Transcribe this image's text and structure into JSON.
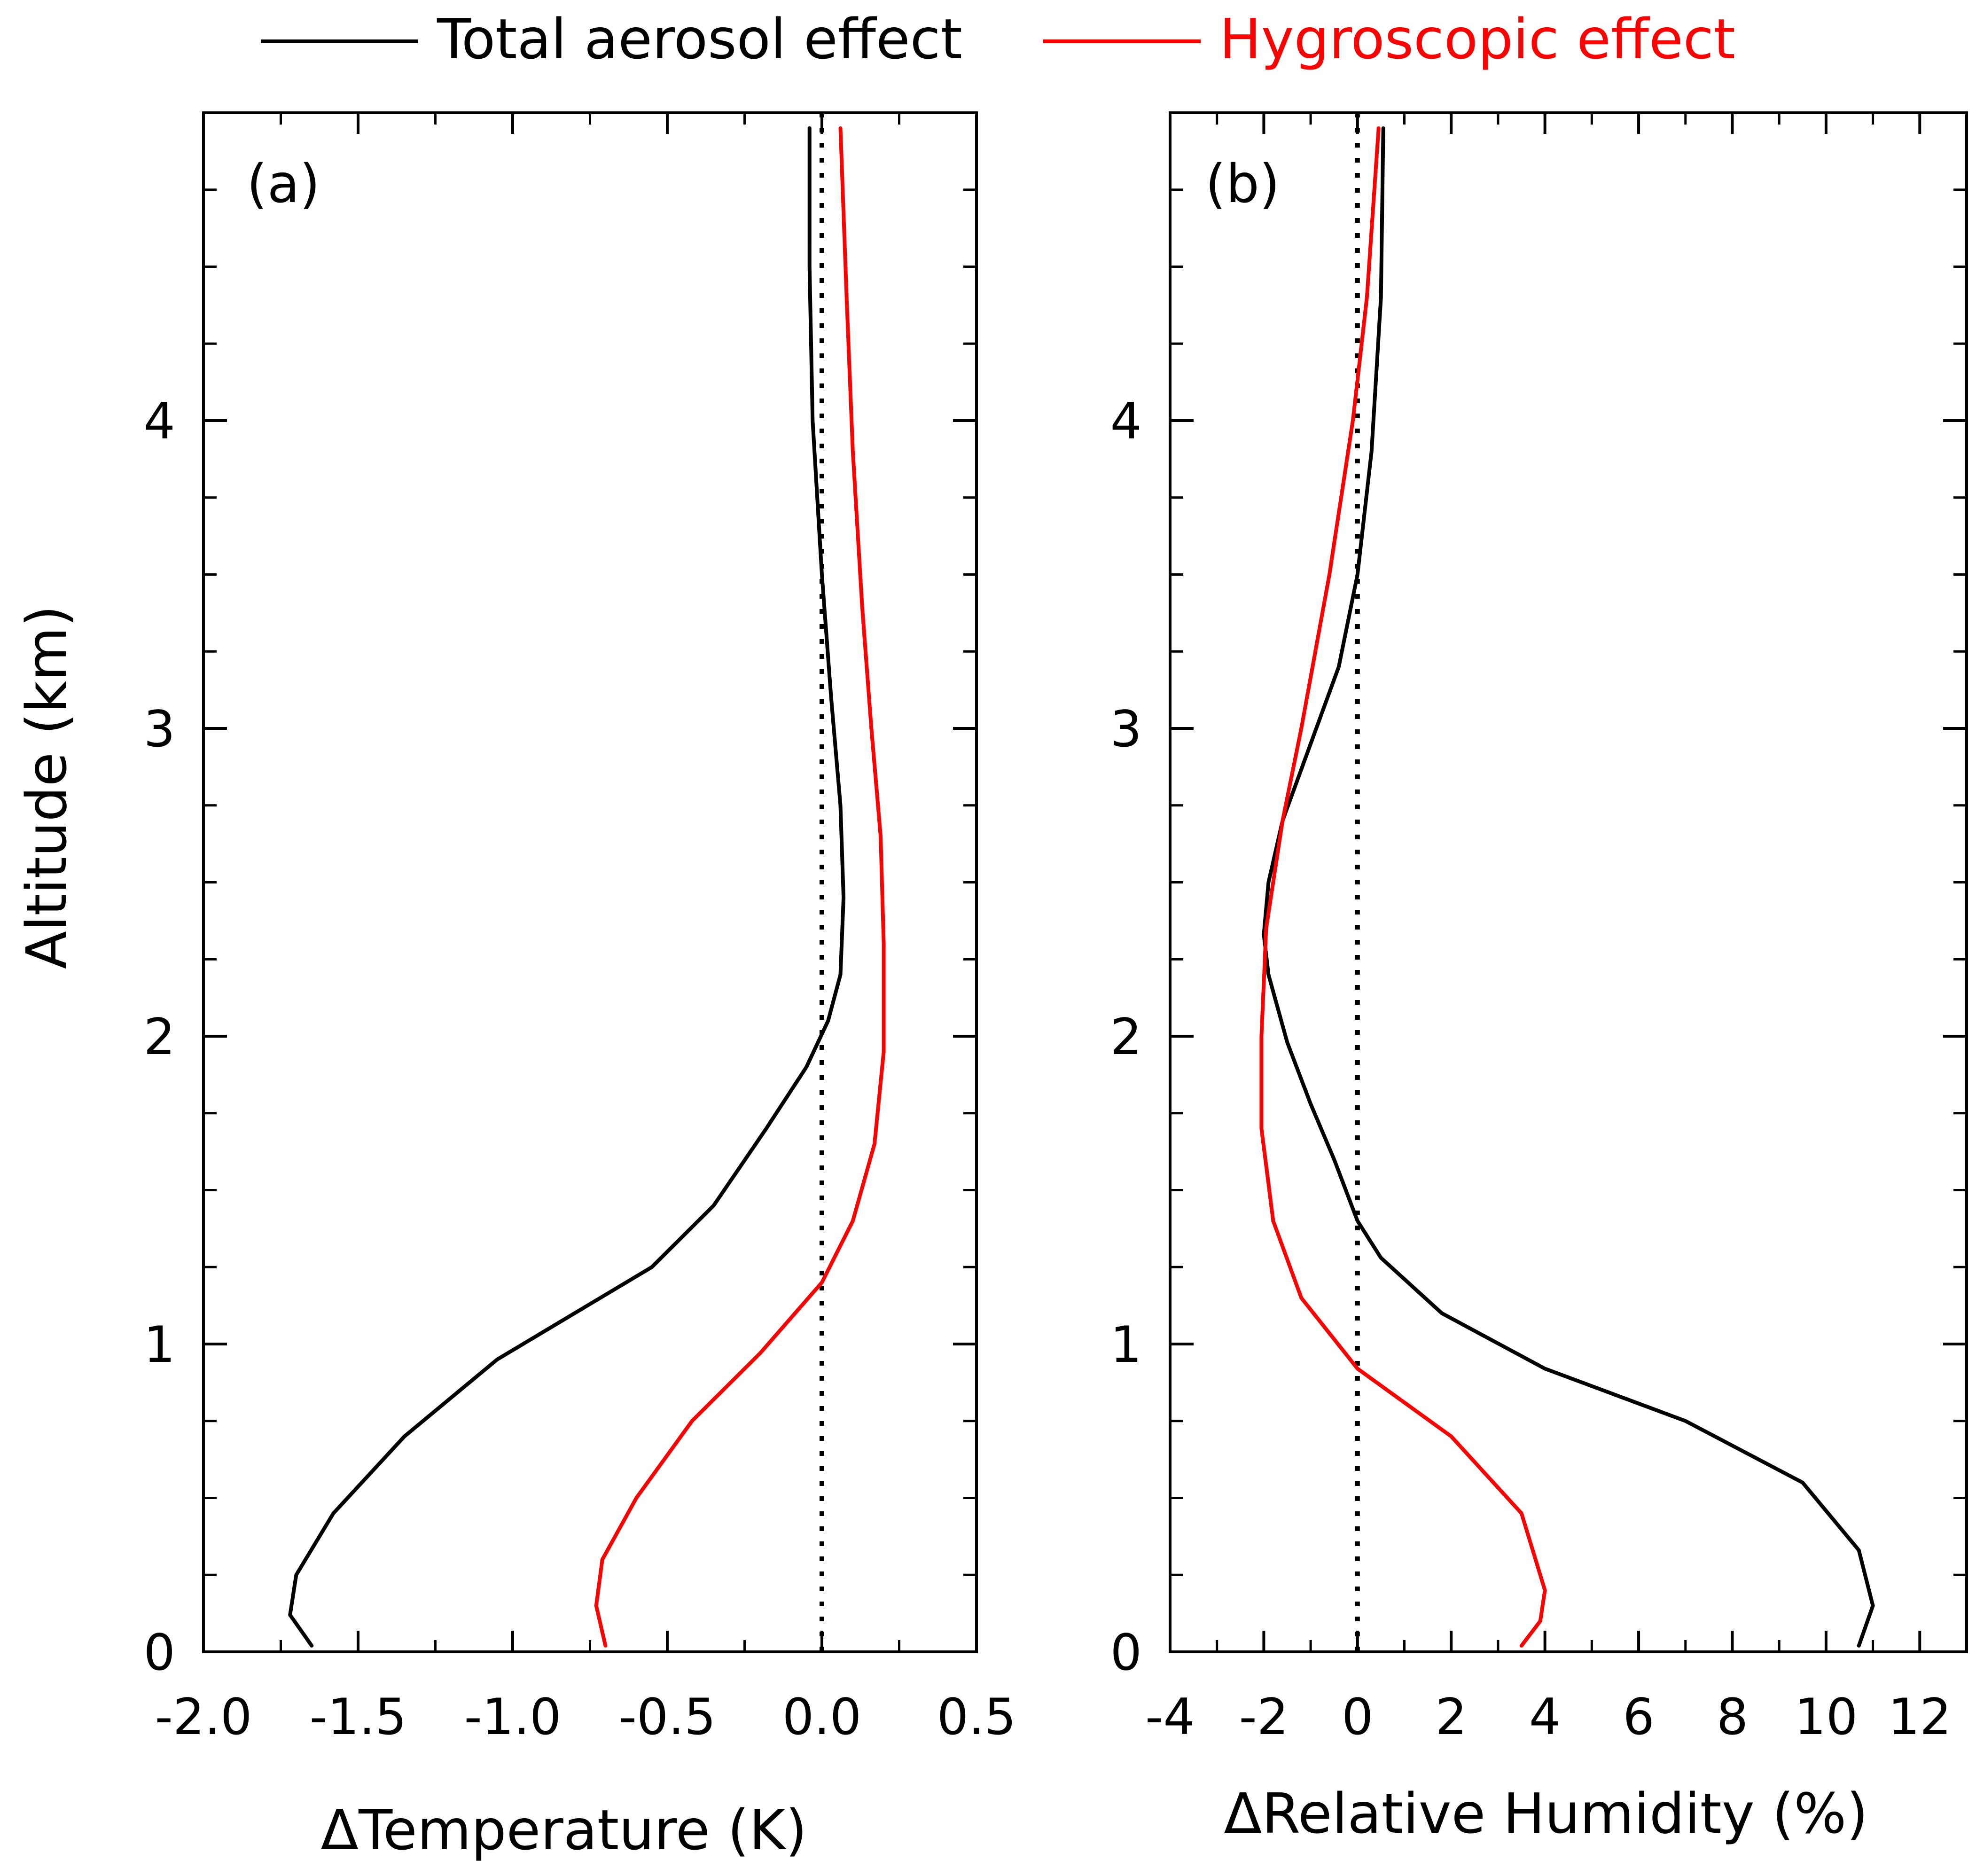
{
  "legend": {
    "placement": "top-center",
    "entries": [
      {
        "label": "Total aerosol effect",
        "color": "#000000"
      },
      {
        "label": "Hygroscopic effect",
        "color": "#ff0000"
      }
    ]
  },
  "chart_data": [
    {
      "type": "line",
      "panel_label": "(a)",
      "xlabel": "ΔTemperature (K)",
      "ylabel": "Altitude (km)",
      "xlim": [
        -2.0,
        0.5
      ],
      "ylim": [
        0,
        5
      ],
      "xticks": [
        "-2.0",
        "-1.5",
        "-1.0",
        "-0.5",
        "0.0",
        "0.5"
      ],
      "xtick_values": [
        -2.0,
        -1.5,
        -1.0,
        -0.5,
        0.0,
        0.5
      ],
      "yticks": [
        "0",
        "1",
        "2",
        "3",
        "4"
      ],
      "ytick_values": [
        0,
        1,
        2,
        3,
        4
      ],
      "reference_line": {
        "x": 0.0,
        "style": "dotted"
      },
      "series": [
        {
          "name": "Total aerosol effect",
          "color": "#000000",
          "points": [
            {
              "x": -1.65,
              "y": 0.02
            },
            {
              "x": -1.72,
              "y": 0.12
            },
            {
              "x": -1.7,
              "y": 0.25
            },
            {
              "x": -1.58,
              "y": 0.45
            },
            {
              "x": -1.35,
              "y": 0.7
            },
            {
              "x": -1.05,
              "y": 0.95
            },
            {
              "x": -0.55,
              "y": 1.25
            },
            {
              "x": -0.35,
              "y": 1.45
            },
            {
              "x": -0.18,
              "y": 1.7
            },
            {
              "x": -0.05,
              "y": 1.9
            },
            {
              "x": 0.02,
              "y": 2.05
            },
            {
              "x": 0.06,
              "y": 2.2
            },
            {
              "x": 0.07,
              "y": 2.45
            },
            {
              "x": 0.06,
              "y": 2.75
            },
            {
              "x": 0.03,
              "y": 3.1
            },
            {
              "x": 0.0,
              "y": 3.5
            },
            {
              "x": -0.03,
              "y": 4.0
            },
            {
              "x": -0.04,
              "y": 4.5
            },
            {
              "x": -0.04,
              "y": 4.95
            }
          ]
        },
        {
          "name": "Hygroscopic effect",
          "color": "#ff0000",
          "points": [
            {
              "x": -0.7,
              "y": 0.02
            },
            {
              "x": -0.73,
              "y": 0.15
            },
            {
              "x": -0.71,
              "y": 0.3
            },
            {
              "x": -0.6,
              "y": 0.5
            },
            {
              "x": -0.42,
              "y": 0.75
            },
            {
              "x": -0.2,
              "y": 0.97
            },
            {
              "x": 0.0,
              "y": 1.2
            },
            {
              "x": 0.1,
              "y": 1.4
            },
            {
              "x": 0.17,
              "y": 1.65
            },
            {
              "x": 0.2,
              "y": 1.95
            },
            {
              "x": 0.2,
              "y": 2.3
            },
            {
              "x": 0.19,
              "y": 2.65
            },
            {
              "x": 0.16,
              "y": 3.0
            },
            {
              "x": 0.13,
              "y": 3.4
            },
            {
              "x": 0.1,
              "y": 3.9
            },
            {
              "x": 0.08,
              "y": 4.4
            },
            {
              "x": 0.06,
              "y": 4.95
            }
          ]
        }
      ]
    },
    {
      "type": "line",
      "panel_label": "(b)",
      "xlabel": "ΔRelative Humidity (%)",
      "ylabel": "",
      "xlim": [
        -4,
        13
      ],
      "ylim": [
        0,
        5
      ],
      "xticks": [
        "-4",
        "-2",
        "0",
        "2",
        "4",
        "6",
        "8",
        "10",
        "12"
      ],
      "xtick_values": [
        -4,
        -2,
        0,
        2,
        4,
        6,
        8,
        10,
        12
      ],
      "yticks": [
        "0",
        "1",
        "2",
        "3",
        "4"
      ],
      "ytick_values": [
        0,
        1,
        2,
        3,
        4
      ],
      "reference_line": {
        "x": 0,
        "style": "dotted"
      },
      "series": [
        {
          "name": "Total aerosol effect",
          "color": "#000000",
          "points": [
            {
              "x": 10.7,
              "y": 0.02
            },
            {
              "x": 11.0,
              "y": 0.15
            },
            {
              "x": 10.7,
              "y": 0.33
            },
            {
              "x": 9.5,
              "y": 0.55
            },
            {
              "x": 7.0,
              "y": 0.75
            },
            {
              "x": 4.0,
              "y": 0.92
            },
            {
              "x": 1.8,
              "y": 1.1
            },
            {
              "x": 0.5,
              "y": 1.28
            },
            {
              "x": 0.0,
              "y": 1.4
            },
            {
              "x": -0.5,
              "y": 1.6
            },
            {
              "x": -1.0,
              "y": 1.78
            },
            {
              "x": -1.5,
              "y": 1.98
            },
            {
              "x": -1.9,
              "y": 2.2
            },
            {
              "x": -2.0,
              "y": 2.33
            },
            {
              "x": -1.9,
              "y": 2.5
            },
            {
              "x": -1.6,
              "y": 2.7
            },
            {
              "x": -1.0,
              "y": 2.95
            },
            {
              "x": -0.4,
              "y": 3.2
            },
            {
              "x": 0.0,
              "y": 3.5
            },
            {
              "x": 0.3,
              "y": 3.9
            },
            {
              "x": 0.5,
              "y": 4.4
            },
            {
              "x": 0.55,
              "y": 4.95
            }
          ]
        },
        {
          "name": "Hygroscopic effect",
          "color": "#ff0000",
          "points": [
            {
              "x": 3.5,
              "y": 0.02
            },
            {
              "x": 3.9,
              "y": 0.1
            },
            {
              "x": 4.0,
              "y": 0.2
            },
            {
              "x": 3.5,
              "y": 0.45
            },
            {
              "x": 2.0,
              "y": 0.7
            },
            {
              "x": 0.0,
              "y": 0.92
            },
            {
              "x": -1.2,
              "y": 1.15
            },
            {
              "x": -1.8,
              "y": 1.4
            },
            {
              "x": -2.05,
              "y": 1.7
            },
            {
              "x": -2.05,
              "y": 2.0
            },
            {
              "x": -1.95,
              "y": 2.35
            },
            {
              "x": -1.6,
              "y": 2.7
            },
            {
              "x": -1.2,
              "y": 3.0
            },
            {
              "x": -0.6,
              "y": 3.5
            },
            {
              "x": -0.1,
              "y": 4.0
            },
            {
              "x": 0.2,
              "y": 4.4
            },
            {
              "x": 0.45,
              "y": 4.95
            }
          ]
        }
      ]
    }
  ]
}
